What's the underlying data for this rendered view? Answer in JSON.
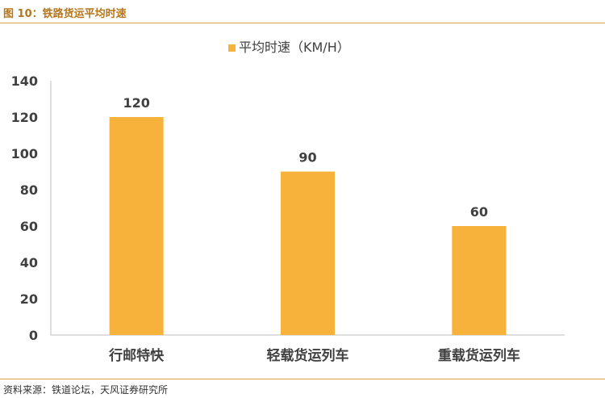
{
  "figure_title": "图 10：铁路货运平均时速",
  "source": "资料来源：铁道论坛，天风证券研究所",
  "colors": {
    "bar": "#F7B23B",
    "title": "#B5761B",
    "rule": "#D9A441",
    "text": "#404040",
    "axis": "#BFBFBF"
  },
  "chart_data": {
    "type": "bar",
    "title": "",
    "xlabel": "",
    "ylabel": "",
    "categories": [
      "行邮特快",
      "轻载货运列车",
      "重载货运列车"
    ],
    "series": [
      {
        "name": "平均时速（KM/H）",
        "values": [
          120,
          90,
          60
        ]
      }
    ],
    "ylim": [
      0,
      140
    ],
    "yticks": [
      0,
      20,
      40,
      60,
      80,
      100,
      120,
      140
    ],
    "data_labels": true,
    "grid": false,
    "legend": "top-center"
  }
}
